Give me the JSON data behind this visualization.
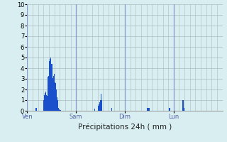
{
  "xlabel": "Précipitations 24h ( mm )",
  "ylim": [
    0,
    10
  ],
  "yticks": [
    0,
    1,
    2,
    3,
    4,
    5,
    6,
    7,
    8,
    9,
    10
  ],
  "background_color": "#d8eef0",
  "bar_color": "#1a50cc",
  "grid_color": "#aabbc0",
  "day_line_color": "#8899cc",
  "day_labels": [
    "Ven",
    "Sam",
    "Dim",
    "Lun"
  ],
  "day_positions": [
    0,
    72,
    144,
    216
  ],
  "xlim": [
    0,
    288
  ],
  "values": [
    0,
    0,
    0,
    0,
    0,
    0,
    0,
    0,
    0,
    0,
    0,
    0,
    0.3,
    0.3,
    0,
    0,
    0,
    0,
    0,
    0,
    0,
    0,
    0,
    0,
    1.0,
    1.5,
    1.7,
    1.8,
    1.5,
    1.4,
    3.2,
    3.3,
    4.7,
    4.9,
    5.0,
    4.4,
    4.4,
    3.1,
    3.3,
    3.5,
    2.7,
    2.6,
    2.6,
    2.0,
    1.3,
    1.0,
    0.3,
    0.15,
    0.1,
    0.05,
    0,
    0,
    0,
    0,
    0,
    0,
    0,
    0,
    0,
    0,
    0,
    0,
    0,
    0,
    0,
    0,
    0,
    0,
    0,
    0,
    0,
    0,
    0,
    0,
    0,
    0,
    0,
    0,
    0,
    0,
    0,
    0,
    0,
    0,
    0,
    0,
    0,
    0,
    0,
    0,
    0,
    0,
    0,
    0,
    0,
    0,
    0,
    0,
    0,
    0.2,
    0,
    0,
    0,
    0,
    0.5,
    0.6,
    0.8,
    1.0,
    1.6,
    1.0,
    0.9,
    0,
    0,
    0,
    0,
    0,
    0,
    0,
    0,
    0,
    0,
    0,
    0,
    0,
    0.3,
    0,
    0,
    0,
    0,
    0,
    0,
    0,
    0,
    0,
    0,
    0,
    0,
    0,
    0,
    0,
    0,
    0,
    0,
    0,
    0,
    0,
    0,
    0,
    0,
    0,
    0,
    0,
    0,
    0,
    0,
    0,
    0,
    0,
    0,
    0,
    0,
    0,
    0,
    0,
    0,
    0,
    0,
    0,
    0,
    0,
    0,
    0,
    0,
    0,
    0,
    0,
    0.3,
    0.3,
    0.3,
    0.3,
    0.3,
    0,
    0,
    0,
    0,
    0,
    0,
    0,
    0,
    0,
    0,
    0,
    0,
    0,
    0,
    0,
    0,
    0,
    0,
    0,
    0,
    0,
    0,
    0,
    0,
    0,
    0,
    0,
    0,
    0.3,
    0.3,
    0,
    0,
    0,
    0,
    0,
    0,
    0,
    0,
    0,
    0,
    0,
    0,
    0,
    0,
    0,
    0,
    0,
    0,
    1.0,
    1.0,
    0.3,
    0,
    0,
    0,
    0,
    0,
    0,
    0,
    0,
    0,
    0,
    0,
    0,
    0,
    0,
    0,
    0,
    0,
    0,
    0,
    0,
    0,
    0,
    0,
    0,
    0,
    0
  ]
}
